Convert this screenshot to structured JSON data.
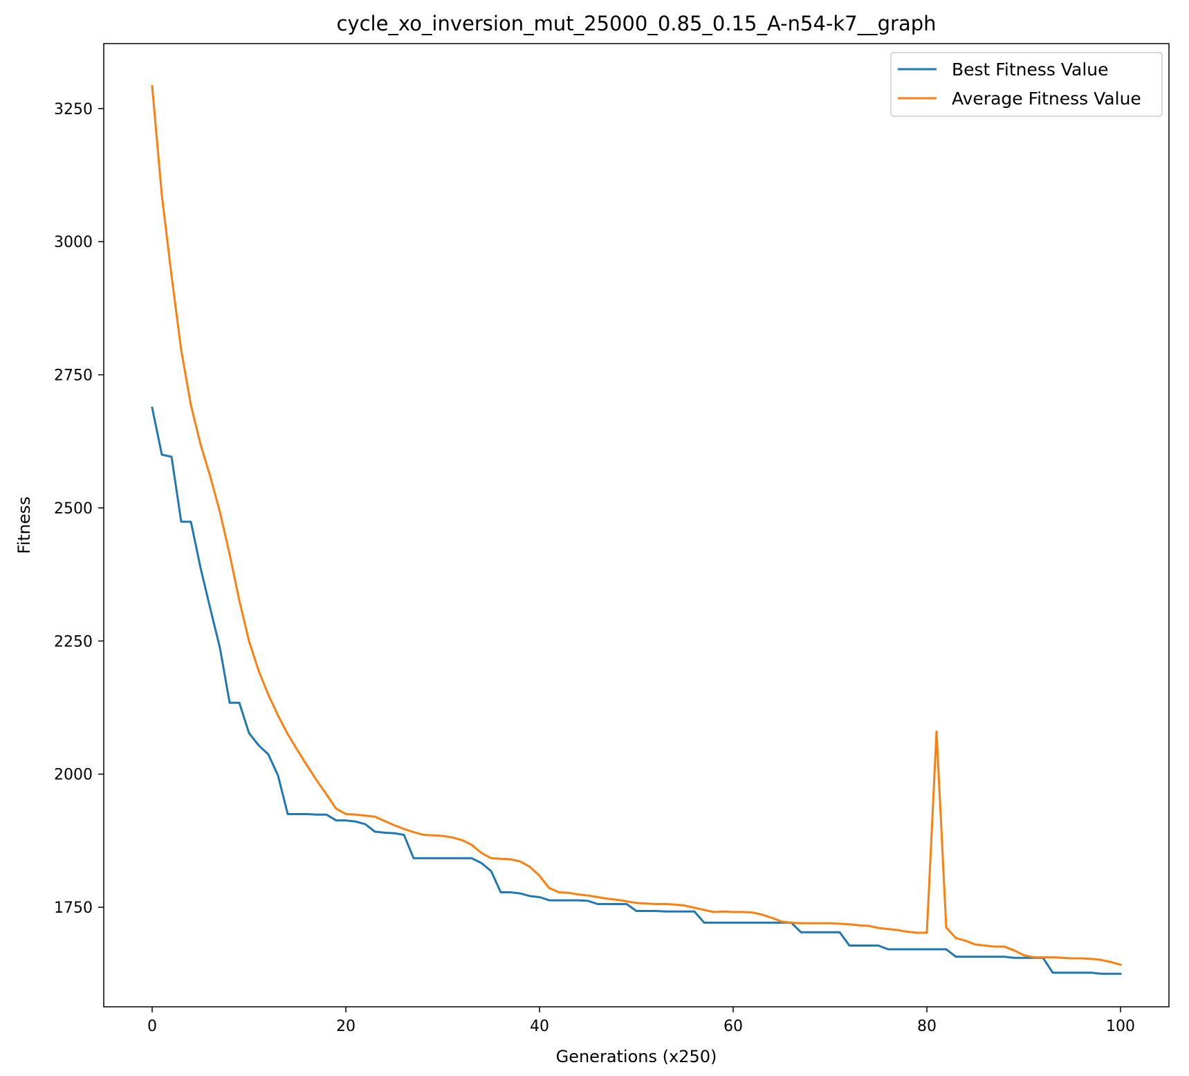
{
  "chart_data": {
    "type": "line",
    "title": "cycle_xo_inversion_mut_25000_0.85_0.15_A-n54-k7__graph",
    "xlabel": "Generations (x250)",
    "ylabel": "Fitness",
    "xlim": [
      -5,
      105
    ],
    "ylim": [
      1563,
      3372
    ],
    "xticks": [
      0,
      20,
      40,
      60,
      80,
      100
    ],
    "yticks": [
      1750,
      2000,
      2250,
      2500,
      2750,
      3000,
      3250
    ],
    "grid": false,
    "legend_position": "top-right",
    "x": [
      0,
      1,
      2,
      3,
      4,
      5,
      6,
      7,
      8,
      9,
      10,
      11,
      12,
      13,
      14,
      15,
      16,
      17,
      18,
      19,
      20,
      21,
      22,
      23,
      24,
      25,
      26,
      27,
      28,
      29,
      30,
      31,
      32,
      33,
      34,
      35,
      36,
      37,
      38,
      39,
      40,
      41,
      42,
      43,
      44,
      45,
      46,
      47,
      48,
      49,
      50,
      51,
      52,
      53,
      54,
      55,
      56,
      57,
      58,
      59,
      60,
      61,
      62,
      63,
      64,
      65,
      66,
      67,
      68,
      69,
      70,
      71,
      72,
      73,
      74,
      75,
      76,
      77,
      78,
      79,
      80,
      81,
      82,
      83,
      84,
      85,
      86,
      87,
      88,
      89,
      90,
      91,
      92,
      93,
      94,
      95,
      96,
      97,
      98,
      99,
      100
    ],
    "series": [
      {
        "name": "Best Fitness Value",
        "color": "#1f77b4",
        "values": [
          2688,
          2600,
          2596,
          2474,
          2474,
          2387,
          2311,
          2237,
          2134,
          2134,
          2077,
          2054,
          2037,
          1997,
          1925,
          1925,
          1925,
          1924,
          1924,
          1913,
          1913,
          1911,
          1906,
          1892,
          1890,
          1889,
          1886,
          1842,
          1842,
          1842,
          1842,
          1842,
          1842,
          1842,
          1833,
          1818,
          1778,
          1778,
          1776,
          1771,
          1769,
          1763,
          1763,
          1763,
          1763,
          1762,
          1756,
          1756,
          1756,
          1756,
          1743,
          1743,
          1743,
          1742,
          1742,
          1742,
          1742,
          1721,
          1721,
          1721,
          1721,
          1721,
          1721,
          1721,
          1721,
          1721,
          1721,
          1703,
          1703,
          1703,
          1703,
          1703,
          1678,
          1678,
          1678,
          1678,
          1671,
          1671,
          1671,
          1671,
          1671,
          1671,
          1671,
          1657,
          1657,
          1657,
          1657,
          1657,
          1657,
          1655,
          1655,
          1655,
          1655,
          1627,
          1627,
          1627,
          1627,
          1627,
          1625,
          1625,
          1625
        ]
      },
      {
        "name": "Average Fitness Value",
        "color": "#ff7f0e",
        "values": [
          3292,
          3087,
          2936,
          2796,
          2693,
          2619,
          2559,
          2492,
          2413,
          2326,
          2250,
          2194,
          2149,
          2110,
          2075,
          2045,
          2016,
          1988,
          1962,
          1935,
          1925,
          1924,
          1922,
          1920,
          1912,
          1904,
          1897,
          1891,
          1886,
          1885,
          1884,
          1881,
          1876,
          1867,
          1852,
          1842,
          1841,
          1840,
          1836,
          1826,
          1809,
          1786,
          1778,
          1777,
          1774,
          1772,
          1769,
          1766,
          1764,
          1761,
          1758,
          1757,
          1756,
          1756,
          1755,
          1753,
          1749,
          1745,
          1741,
          1742,
          1741,
          1741,
          1740,
          1736,
          1730,
          1723,
          1721,
          1720,
          1720,
          1720,
          1720,
          1719,
          1718,
          1716,
          1715,
          1711,
          1709,
          1707,
          1704,
          1702,
          1702,
          2080,
          1712,
          1692,
          1687,
          1680,
          1678,
          1676,
          1676,
          1669,
          1660,
          1656,
          1656,
          1656,
          1655,
          1654,
          1654,
          1653,
          1651,
          1647,
          1642
        ]
      }
    ]
  }
}
